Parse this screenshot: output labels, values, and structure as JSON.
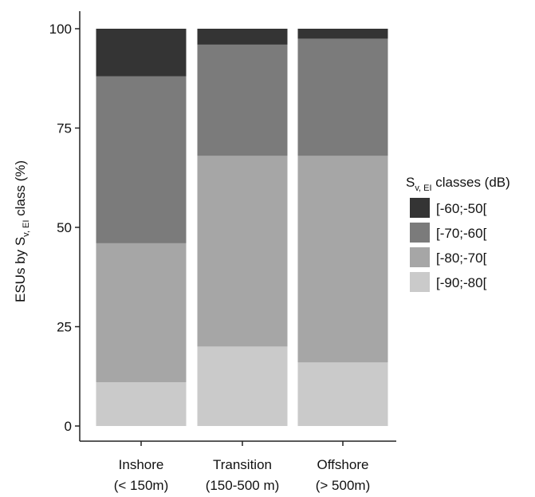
{
  "chart_data": {
    "type": "bar",
    "stacked": true,
    "categories": [
      [
        "Inshore",
        "(< 150m)"
      ],
      [
        "Transition",
        "(150-500 m)"
      ],
      [
        "Offshore",
        "(> 500m)"
      ]
    ],
    "series": [
      {
        "name": "[-90;-80[",
        "color": "#cacaca",
        "values": [
          11,
          20,
          16
        ]
      },
      {
        "name": "[-80;-70[",
        "color": "#a6a6a6",
        "values": [
          35,
          48,
          52
        ]
      },
      {
        "name": "[-70;-60[",
        "color": "#7b7b7b",
        "values": [
          42,
          28,
          29.5
        ]
      },
      {
        "name": "[-60;-50[",
        "color": "#343434",
        "values": [
          12,
          4,
          2.5
        ]
      }
    ],
    "ylabel": {
      "prefix": "ESUs by S",
      "subscript": "v, EI",
      "suffix": " class (%)"
    },
    "ylim": [
      0,
      100
    ],
    "yticks": [
      0,
      25,
      50,
      75,
      100
    ],
    "grid": false,
    "legend": {
      "placement": "right",
      "title_prefix": "S",
      "title_subscript": "v, EI",
      "title_suffix": " classes (dB)",
      "order": [
        "[-60;-50[",
        "[-70;-60[",
        "[-80;-70[",
        "[-90;-80["
      ]
    }
  }
}
